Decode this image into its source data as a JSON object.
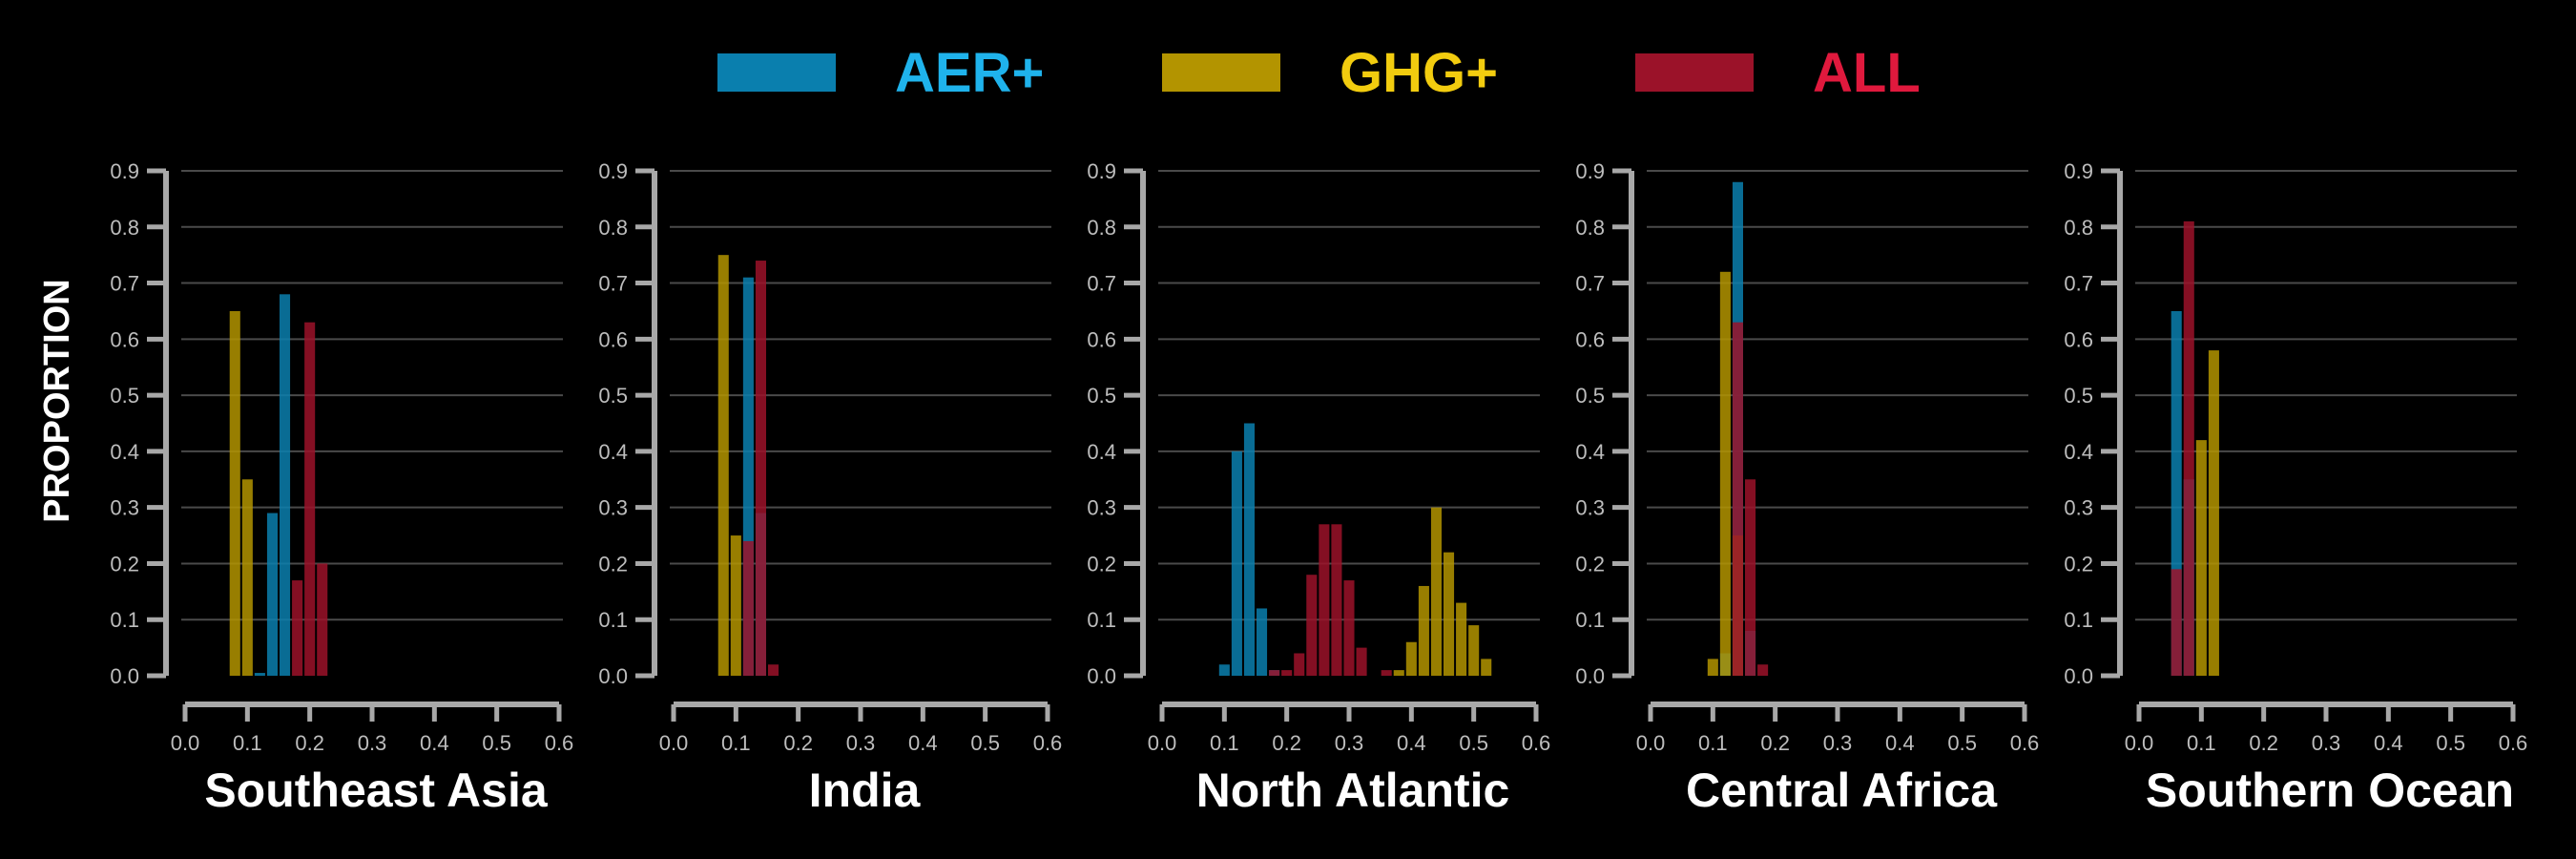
{
  "chart_data": {
    "type": "bar",
    "ylabel": "PROPORTION",
    "legend_placement": "top-center",
    "legend": [
      {
        "name": "AER+",
        "color": "#0a7fae",
        "text_color": "#1fb3ec"
      },
      {
        "name": "GHG+",
        "color": "#b39400",
        "text_color": "#f2cc0f"
      },
      {
        "name": "ALL",
        "color": "#9b1229",
        "text_color": "#e0193d"
      }
    ],
    "xlim": [
      0,
      0.6
    ],
    "ylim": [
      0,
      0.9
    ],
    "xticks": [
      "0.0",
      "0.1",
      "0.2",
      "0.3",
      "0.4",
      "0.5",
      "0.6"
    ],
    "yticks": [
      "0.0",
      "0.1",
      "0.2",
      "0.3",
      "0.4",
      "0.5",
      "0.6",
      "0.7",
      "0.8",
      "0.9"
    ],
    "bin_width": 0.02,
    "grid": true,
    "panels": [
      {
        "title": "Southeast Asia",
        "series": [
          {
            "name": "AER+",
            "x": [
              0.12,
              0.14,
              0.16
            ],
            "values": [
              0.005,
              0.29,
              0.68
            ]
          },
          {
            "name": "GHG+",
            "x": [
              0.08,
              0.1
            ],
            "values": [
              0.65,
              0.35
            ]
          },
          {
            "name": "ALL",
            "x": [
              0.18,
              0.2,
              0.22
            ],
            "values": [
              0.17,
              0.63,
              0.2
            ]
          }
        ]
      },
      {
        "title": "India",
        "series": [
          {
            "name": "AER+",
            "x": [
              0.12,
              0.14
            ],
            "values": [
              0.71,
              0.29
            ]
          },
          {
            "name": "GHG+",
            "x": [
              0.08,
              0.1
            ],
            "values": [
              0.75,
              0.25
            ]
          },
          {
            "name": "ALL",
            "x": [
              0.12,
              0.14,
              0.16
            ],
            "values": [
              0.24,
              0.74,
              0.02
            ]
          }
        ]
      },
      {
        "title": "North Atlantic",
        "series": [
          {
            "name": "AER+",
            "x": [
              0.1,
              0.12,
              0.14,
              0.16,
              0.18
            ],
            "values": [
              0.02,
              0.4,
              0.45,
              0.12,
              0.01
            ]
          },
          {
            "name": "GHG+",
            "x": [
              0.38,
              0.4,
              0.42,
              0.44,
              0.46,
              0.48,
              0.5,
              0.52
            ],
            "values": [
              0.01,
              0.06,
              0.16,
              0.3,
              0.22,
              0.13,
              0.09,
              0.03
            ]
          },
          {
            "name": "ALL",
            "x": [
              0.18,
              0.2,
              0.22,
              0.24,
              0.26,
              0.28,
              0.3,
              0.32,
              0.36
            ],
            "values": [
              0.01,
              0.01,
              0.04,
              0.18,
              0.27,
              0.27,
              0.17,
              0.05,
              0.01
            ]
          }
        ]
      },
      {
        "title": "Central Africa",
        "series": [
          {
            "name": "AER+",
            "x": [
              0.12,
              0.14,
              0.16
            ],
            "values": [
              0.04,
              0.88,
              0.08
            ]
          },
          {
            "name": "GHG+",
            "x": [
              0.1,
              0.12,
              0.14
            ],
            "values": [
              0.03,
              0.72,
              0.25
            ]
          },
          {
            "name": "ALL",
            "x": [
              0.14,
              0.16,
              0.18
            ],
            "values": [
              0.63,
              0.35,
              0.02
            ]
          }
        ]
      },
      {
        "title": "Southern Ocean",
        "series": [
          {
            "name": "AER+",
            "x": [
              0.06,
              0.08
            ],
            "values": [
              0.65,
              0.35
            ]
          },
          {
            "name": "GHG+",
            "x": [
              0.1,
              0.12
            ],
            "values": [
              0.42,
              0.58
            ]
          },
          {
            "name": "ALL",
            "x": [
              0.06,
              0.08
            ],
            "values": [
              0.19,
              0.81
            ]
          }
        ]
      }
    ]
  }
}
